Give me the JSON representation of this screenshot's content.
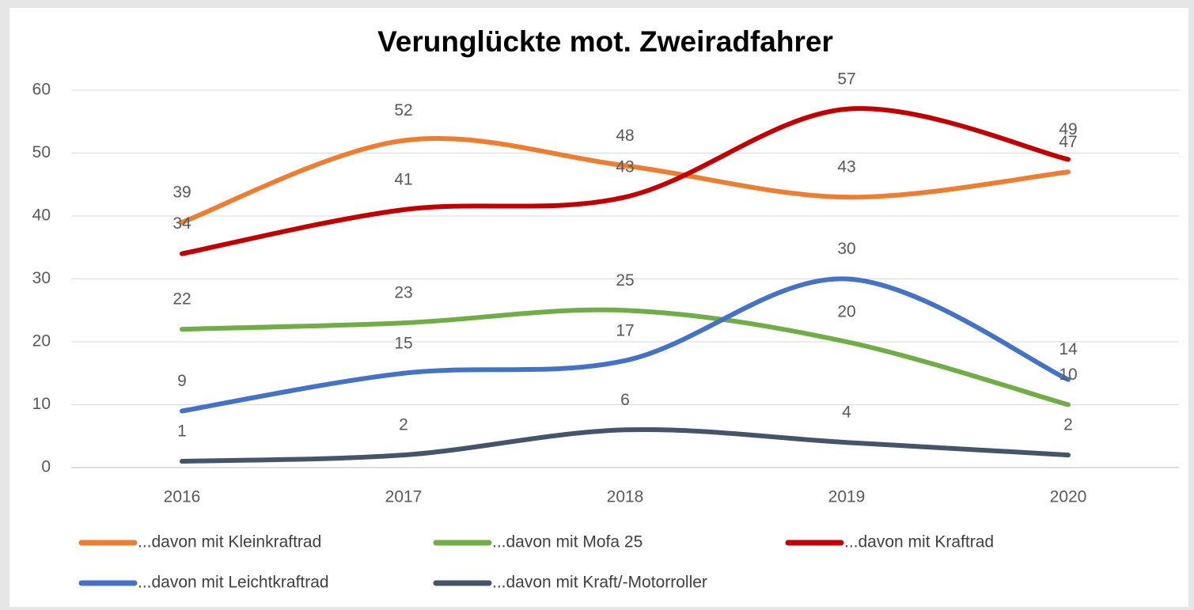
{
  "chart_data": {
    "type": "line",
    "title": "Verunglückte mot. Zweiradfahrer",
    "categories": [
      "2016",
      "2017",
      "2018",
      "2019",
      "2020"
    ],
    "series": [
      {
        "name": "...davon mit Kleinkraftrad",
        "color": "#ed7d31",
        "values": [
          39,
          52,
          48,
          43,
          47
        ]
      },
      {
        "name": "...davon mit Mofa 25",
        "color": "#70ad47",
        "values": [
          22,
          23,
          25,
          20,
          10
        ]
      },
      {
        "name": "...davon mit Kraftrad",
        "color": "#c00000",
        "values": [
          34,
          41,
          43,
          57,
          49
        ]
      },
      {
        "name": "...davon mit Leichtkraftrad",
        "color": "#4472c4",
        "values": [
          9,
          15,
          17,
          30,
          14
        ]
      },
      {
        "name": "...davon mit Kraft/-Motorroller",
        "color": "#44546a",
        "values": [
          1,
          2,
          6,
          4,
          2
        ]
      }
    ],
    "ylim": [
      0,
      60
    ],
    "yticks": [
      0,
      10,
      20,
      30,
      40,
      50,
      60
    ],
    "grid": true,
    "smooth": true,
    "legend": "bottom"
  }
}
